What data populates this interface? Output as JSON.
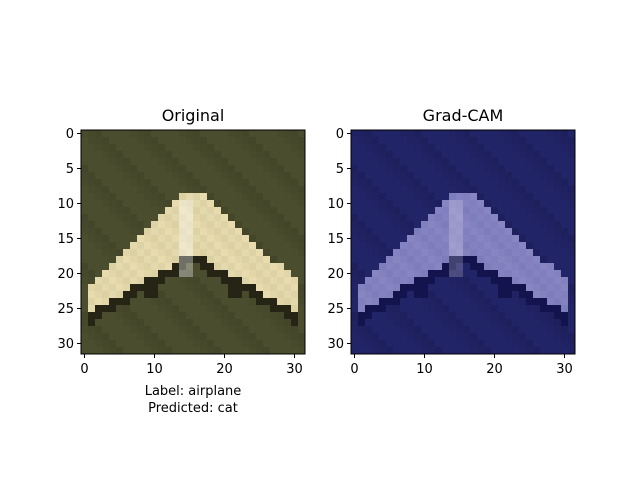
{
  "chart_data": [
    {
      "type": "image",
      "title": "Original",
      "xlim": [
        -0.5,
        31.5
      ],
      "ylim": [
        31.5,
        -0.5
      ],
      "xticks": [
        0,
        10,
        20,
        30
      ],
      "yticks": [
        0,
        5,
        10,
        15,
        20,
        25,
        30
      ],
      "xtick_labels": [
        "0",
        "10",
        "20",
        "30"
      ],
      "ytick_labels": [
        "0",
        "5",
        "10",
        "15",
        "20",
        "25",
        "30"
      ],
      "xlabel_lines": [
        "Label: airplane",
        "Predicted: cat"
      ],
      "colors": {
        "background": "#4b4e2e",
        "plane": "#e8dcae",
        "shadow": "#1f1d10"
      }
    },
    {
      "type": "image",
      "title": "Grad-CAM",
      "xlim": [
        -0.5,
        31.5
      ],
      "ylim": [
        31.5,
        -0.5
      ],
      "xticks": [
        0,
        10,
        20,
        30
      ],
      "yticks": [
        0,
        5,
        10,
        15,
        20,
        25,
        30
      ],
      "xtick_labels": [
        "0",
        "10",
        "20",
        "30"
      ],
      "ytick_labels": [
        "0",
        "5",
        "10",
        "15",
        "20",
        "25",
        "30"
      ],
      "xlabel_lines": [],
      "colors": {
        "background": "#222468",
        "plane": "#8785c2",
        "shadow": "#10104a"
      }
    }
  ]
}
